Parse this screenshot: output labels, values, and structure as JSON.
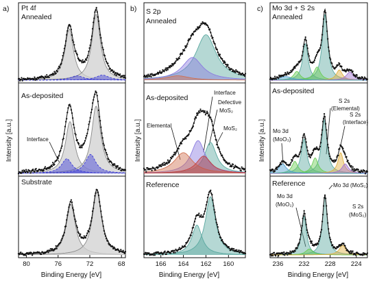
{
  "figure": {
    "panel_letters": [
      "a)",
      "b)",
      "c)"
    ],
    "ylabel": "Intensity [a.u.]",
    "xlabel": "Binding Energy [eV]"
  },
  "chart_data": [
    {
      "type": "line",
      "panel": "a",
      "title": "Pt 4f",
      "xlabel": "Binding Energy [eV]",
      "ylabel": "Intensity [a.u.]",
      "xlim": [
        81,
        67.5
      ],
      "xticks": [
        80,
        76,
        72,
        68
      ],
      "x_reversed": true,
      "subplots": [
        {
          "name": "Annealed",
          "labels": [
            "Pt 4f",
            "Annealed"
          ],
          "peaks": [
            {
              "center": 74.6,
              "fwhm": 1.3,
              "amp": 0.7,
              "role": "envelope",
              "color": "#d0d0d0"
            },
            {
              "center": 71.2,
              "fwhm": 1.3,
              "amp": 0.9,
              "role": "envelope",
              "color": "#d0d0d0"
            },
            {
              "center": 73.6,
              "fwhm": 2.0,
              "amp": 0.06,
              "role": "component",
              "color": "#3b3bd6"
            },
            {
              "center": 70.4,
              "fwhm": 2.0,
              "amp": 0.07,
              "role": "component",
              "color": "#3b3bd6"
            }
          ],
          "annotations": []
        },
        {
          "name": "As-deposited",
          "labels": [
            "As-deposited"
          ],
          "peaks": [
            {
              "center": 74.5,
              "fwhm": 1.4,
              "amp": 0.6,
              "role": "envelope",
              "color": "#d0d0d0"
            },
            {
              "center": 71.2,
              "fwhm": 1.4,
              "amp": 0.78,
              "role": "envelope",
              "color": "#d0d0d0"
            },
            {
              "center": 74.9,
              "fwhm": 1.6,
              "amp": 0.17,
              "role": "component",
              "color": "#3b3bd6"
            },
            {
              "center": 71.9,
              "fwhm": 1.6,
              "amp": 0.22,
              "role": "component",
              "color": "#3b3bd6"
            }
          ],
          "annotations": [
            {
              "text": "Interface"
            }
          ]
        },
        {
          "name": "Substrate",
          "labels": [
            "Substrate"
          ],
          "peaks": [
            {
              "center": 74.4,
              "fwhm": 1.4,
              "amp": 0.68,
              "role": "envelope",
              "color": "#d0d0d0"
            },
            {
              "center": 71.1,
              "fwhm": 1.4,
              "amp": 0.85,
              "role": "envelope",
              "color": "#d0d0d0"
            }
          ],
          "annotations": []
        }
      ]
    },
    {
      "type": "line",
      "panel": "b",
      "title": "S 2p",
      "xlabel": "Binding Energy [eV]",
      "ylabel": "Intensity [a.u.]",
      "xlim": [
        167.5,
        158.5
      ],
      "xticks": [
        166,
        164,
        162,
        160
      ],
      "x_reversed": true,
      "subplots": [
        {
          "name": "Annealed",
          "labels": [
            "S 2p",
            "Annealed"
          ],
          "peaks": [
            {
              "center": 162.0,
              "fwhm": 2.2,
              "amp": 0.62,
              "role": "component",
              "color": "#5aa8a0"
            },
            {
              "center": 163.2,
              "fwhm": 2.2,
              "amp": 0.31,
              "role": "component",
              "color": "#8a7ae0"
            },
            {
              "center": 164.5,
              "fwhm": 2.5,
              "amp": 0.06,
              "role": "component",
              "color": "#d07050"
            }
          ],
          "annotations": []
        },
        {
          "name": "As-deposited",
          "labels": [
            "As-deposited"
          ],
          "peaks": [
            {
              "center": 161.6,
              "fwhm": 1.3,
              "amp": 0.36,
              "role": "component",
              "color": "#5aa8a0"
            },
            {
              "center": 162.7,
              "fwhm": 1.5,
              "amp": 0.38,
              "role": "component",
              "color": "#8a7ae0"
            },
            {
              "center": 164.0,
              "fwhm": 2.0,
              "amp": 0.24,
              "role": "component",
              "color": "#d07050"
            },
            {
              "center": 162.2,
              "fwhm": 1.6,
              "amp": 0.2,
              "role": "component",
              "color": "#c04040"
            }
          ],
          "annotations": [
            {
              "text": "Interface"
            },
            {
              "text": "Defective"
            },
            {
              "text": "MoS₂"
            },
            {
              "text": "MoS₂"
            },
            {
              "text": "Elemental"
            }
          ]
        },
        {
          "name": "Reference",
          "labels": [
            "Reference"
          ],
          "peaks": [
            {
              "center": 161.6,
              "fwhm": 1.1,
              "amp": 0.78,
              "role": "component",
              "color": "#5aa8a0"
            },
            {
              "center": 162.8,
              "fwhm": 1.1,
              "amp": 0.4,
              "role": "component",
              "color": "#5aa8a0"
            }
          ],
          "annotations": []
        }
      ]
    },
    {
      "type": "line",
      "panel": "c",
      "title": "Mo 3d + S 2s",
      "xlabel": "Binding Energy [eV]",
      "ylabel": "Intensity [a.u.]",
      "xlim": [
        237.2,
        222.3
      ],
      "xticks": [
        236,
        232,
        228,
        224
      ],
      "x_reversed": true,
      "subplots": [
        {
          "name": "Annealed",
          "labels": [
            "Mo 3d + S 2s",
            "Annealed"
          ],
          "peaks": [
            {
              "center": 231.8,
              "fwhm": 1.0,
              "amp": 0.5,
              "role": "component",
              "color": "#5aa8a0"
            },
            {
              "center": 228.8,
              "fwhm": 1.0,
              "amp": 0.9,
              "role": "component",
              "color": "#5aa8a0"
            },
            {
              "center": 230.0,
              "fwhm": 1.2,
              "amp": 0.18,
              "role": "component",
              "color": "#6acd55"
            },
            {
              "center": 233.1,
              "fwhm": 1.2,
              "amp": 0.12,
              "role": "component",
              "color": "#6acd55"
            },
            {
              "center": 226.6,
              "fwhm": 1.1,
              "amp": 0.14,
              "role": "component",
              "color": "#e0b040"
            },
            {
              "center": 225.0,
              "fwhm": 1.3,
              "amp": 0.11,
              "role": "component",
              "color": "#a070d0"
            },
            {
              "center": 234.8,
              "fwhm": 2.2,
              "amp": 0.05,
              "role": "component",
              "color": "#50a0d0"
            }
          ],
          "annotations": []
        },
        {
          "name": "As-deposited",
          "labels": [
            "As-deposited"
          ],
          "peaks": [
            {
              "center": 232.0,
              "fwhm": 1.0,
              "amp": 0.4,
              "role": "component",
              "color": "#5aa8a0"
            },
            {
              "center": 228.9,
              "fwhm": 1.0,
              "amp": 0.62,
              "role": "component",
              "color": "#5aa8a0"
            },
            {
              "center": 230.3,
              "fwhm": 1.1,
              "amp": 0.18,
              "role": "component",
              "color": "#6acd55"
            },
            {
              "center": 233.4,
              "fwhm": 1.1,
              "amp": 0.14,
              "role": "component",
              "color": "#6acd55"
            },
            {
              "center": 226.4,
              "fwhm": 1.0,
              "amp": 0.24,
              "role": "component",
              "color": "#e0b040"
            },
            {
              "center": 225.7,
              "fwhm": 1.2,
              "amp": 0.11,
              "role": "component",
              "color": "#a070d0"
            },
            {
              "center": 235.3,
              "fwhm": 1.4,
              "amp": 0.11,
              "role": "component",
              "color": "#50a0d0"
            }
          ],
          "annotations": [
            {
              "text": "Mo 3d"
            },
            {
              "text": "(MoO₃)"
            },
            {
              "text": "S 2s"
            },
            {
              "text": "(Elemental)"
            },
            {
              "text": "S 2s"
            },
            {
              "text": "(Interface)"
            }
          ]
        },
        {
          "name": "Reference",
          "labels": [
            "Reference"
          ],
          "peaks": [
            {
              "center": 232.0,
              "fwhm": 0.9,
              "amp": 0.52,
              "role": "component",
              "color": "#5aa8a0"
            },
            {
              "center": 228.8,
              "fwhm": 0.9,
              "amp": 0.78,
              "role": "component",
              "color": "#5aa8a0"
            },
            {
              "center": 231.2,
              "fwhm": 1.3,
              "amp": 0.08,
              "role": "component",
              "color": "#6acd55"
            },
            {
              "center": 226.1,
              "fwhm": 1.2,
              "amp": 0.13,
              "role": "component",
              "color": "#e0b040"
            }
          ],
          "annotations": [
            {
              "text": "Mo 3d (MoS₂)"
            },
            {
              "text": "Mo 3d"
            },
            {
              "text": "(MoO₂)"
            },
            {
              "text": "S 2s"
            },
            {
              "text": "(MoS₂)"
            }
          ]
        }
      ]
    }
  ]
}
